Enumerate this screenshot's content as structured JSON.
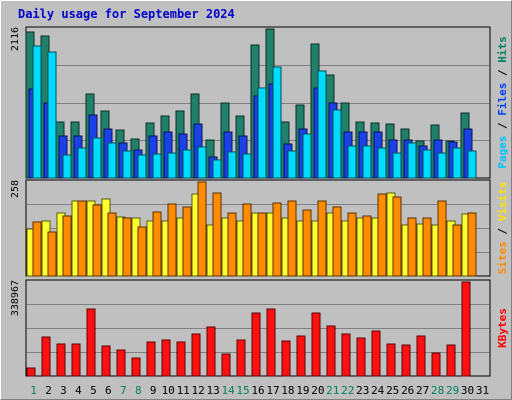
{
  "chart_data": {
    "type": "bar",
    "title": "Daily usage for September 2024",
    "x": [
      "1",
      "2",
      "3",
      "4",
      "5",
      "6",
      "7",
      "8",
      "9",
      "10",
      "11",
      "12",
      "13",
      "14",
      "15",
      "16",
      "17",
      "18",
      "19",
      "20",
      "21",
      "22",
      "23",
      "24",
      "25",
      "26",
      "27",
      "28",
      "29",
      "30",
      "31"
    ],
    "weekend_days": [
      "1",
      "7",
      "8",
      "14",
      "15",
      "21",
      "22",
      "28",
      "29"
    ],
    "panels": [
      {
        "max_label": "2116",
        "ylim": [
          0,
          2116
        ],
        "right_label": [
          {
            "text": "Pages",
            "color": "#00c0ff"
          },
          {
            "text": " / ",
            "color": "#000000"
          },
          {
            "text": "Files",
            "color": "#0040ff"
          },
          {
            "text": " / ",
            "color": "#000000"
          },
          {
            "text": "Hits",
            "color": "#008060"
          }
        ],
        "series": [
          {
            "key": "hits",
            "color": "#20806a",
            "values": [
              2070,
              2020,
              800,
              800,
              1200,
              950,
              680,
              550,
              780,
              880,
              950,
              1200,
              540,
              1060,
              880,
              1890,
              2110,
              800,
              1030,
              1900,
              1460,
              1060,
              800,
              780,
              760,
              700,
              520,
              750,
              520,
              920,
              0
            ]
          },
          {
            "key": "files",
            "color": "#1a40e8",
            "values": [
              1270,
              1060,
              600,
              590,
              900,
              700,
              500,
              400,
              600,
              660,
              630,
              760,
              300,
              660,
              590,
              1170,
              1330,
              480,
              700,
              1280,
              1060,
              650,
              660,
              660,
              540,
              540,
              460,
              540,
              510,
              700,
              0
            ]
          },
          {
            "key": "pages",
            "color": "#00dcff",
            "values": [
              1880,
              1790,
              320,
              420,
              570,
              490,
              380,
              330,
              340,
              360,
              400,
              440,
              250,
              370,
              340,
              1280,
              1580,
              380,
              630,
              1520,
              970,
              450,
              450,
              420,
              360,
              500,
              400,
              360,
              420,
              380,
              0
            ]
          }
        ]
      },
      {
        "max_label": "258",
        "ylim": [
          0,
          258
        ],
        "right_label": [
          {
            "text": "Sites",
            "color": "#ff8c00"
          },
          {
            "text": " / ",
            "color": "#000000"
          },
          {
            "text": "Visits",
            "color": "#ffe000"
          }
        ],
        "series": [
          {
            "key": "visits",
            "color": "#ffff30",
            "values": [
              128,
              150,
              172,
              205,
              205,
              210,
              162,
              160,
              150,
              150,
              158,
              225,
              140,
              160,
              150,
              172,
              172,
              160,
              150,
              150,
              172,
              150,
              158,
              158,
              228,
              140,
              142,
              140,
              150,
              170,
              0
            ]
          },
          {
            "key": "sites",
            "color": "#ff8c00",
            "values": [
              148,
              120,
              165,
              205,
              195,
              172,
              160,
              135,
              175,
              198,
              190,
              258,
              228,
              172,
              198,
              172,
              200,
              205,
              182,
              205,
              190,
              172,
              165,
              225,
              218,
              160,
              160,
              205,
              140,
              172,
              0
            ]
          }
        ]
      },
      {
        "max_label": "338967",
        "ylim": [
          0,
          338967
        ],
        "right_label": [
          {
            "text": "KBytes",
            "color": "#ff0000"
          }
        ],
        "series": [
          {
            "key": "kbytes",
            "color": "#ff1010",
            "values": [
              30000,
              142000,
              117000,
              117000,
              240000,
              108000,
              92000,
              64000,
              122000,
              131000,
              122000,
              150000,
              176000,
              78000,
              131000,
              226000,
              240000,
              127000,
              145000,
              226000,
              182000,
              150000,
              136000,
              164000,
              117000,
              113000,
              145000,
              84000,
              113000,
              338967,
              0
            ]
          }
        ]
      }
    ]
  }
}
